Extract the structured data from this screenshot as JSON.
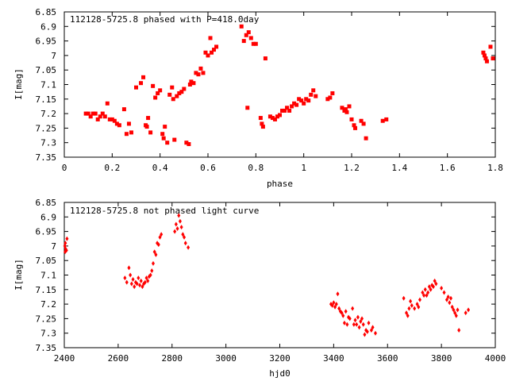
{
  "chart_data": [
    {
      "type": "scatter",
      "title": "112128-5725.8 phased with P=418.0day",
      "xlabel": "phase",
      "ylabel": "I[mag]",
      "xlim": [
        0,
        1.8
      ],
      "ylim": [
        7.35,
        6.85
      ],
      "y_inverted": true,
      "grid": false,
      "xticks": [
        "0",
        "0.2",
        "0.4",
        "0.6",
        "0.8",
        "1",
        "1.2",
        "1.4",
        "1.6",
        "1.8"
      ],
      "yticks": [
        "6.85",
        "6.9",
        "6.95",
        "7",
        "7.05",
        "7.1",
        "7.15",
        "7.2",
        "7.25",
        "7.3",
        "7.35"
      ],
      "marker_color": "#ff0000",
      "points": [
        [
          0.09,
          7.2
        ],
        [
          0.1,
          7.2
        ],
        [
          0.11,
          7.21
        ],
        [
          0.12,
          7.2
        ],
        [
          0.13,
          7.2
        ],
        [
          0.14,
          7.22
        ],
        [
          0.15,
          7.21
        ],
        [
          0.16,
          7.2
        ],
        [
          0.17,
          7.21
        ],
        [
          0.18,
          7.165
        ],
        [
          0.19,
          7.22
        ],
        [
          0.2,
          7.22
        ],
        [
          0.21,
          7.225
        ],
        [
          0.22,
          7.235
        ],
        [
          0.23,
          7.24
        ],
        [
          0.25,
          7.185
        ],
        [
          0.26,
          7.27
        ],
        [
          0.27,
          7.235
        ],
        [
          0.28,
          7.265
        ],
        [
          0.3,
          7.11
        ],
        [
          0.32,
          7.095
        ],
        [
          0.33,
          7.075
        ],
        [
          0.34,
          7.24
        ],
        [
          0.345,
          7.245
        ],
        [
          0.35,
          7.215
        ],
        [
          0.36,
          7.265
        ],
        [
          0.37,
          7.105
        ],
        [
          0.38,
          7.145
        ],
        [
          0.39,
          7.13
        ],
        [
          0.4,
          7.12
        ],
        [
          0.41,
          7.27
        ],
        [
          0.415,
          7.285
        ],
        [
          0.42,
          7.245
        ],
        [
          0.43,
          7.3
        ],
        [
          0.44,
          7.135
        ],
        [
          0.45,
          7.11
        ],
        [
          0.455,
          7.15
        ],
        [
          0.46,
          7.29
        ],
        [
          0.47,
          7.14
        ],
        [
          0.48,
          7.13
        ],
        [
          0.49,
          7.125
        ],
        [
          0.5,
          7.115
        ],
        [
          0.51,
          7.3
        ],
        [
          0.52,
          7.305
        ],
        [
          0.525,
          7.1
        ],
        [
          0.53,
          7.09
        ],
        [
          0.54,
          7.095
        ],
        [
          0.55,
          7.06
        ],
        [
          0.56,
          7.065
        ],
        [
          0.57,
          7.045
        ],
        [
          0.58,
          7.06
        ],
        [
          0.59,
          6.99
        ],
        [
          0.6,
          7.0
        ],
        [
          0.61,
          6.94
        ],
        [
          0.615,
          6.99
        ],
        [
          0.625,
          6.98
        ],
        [
          0.635,
          6.97
        ],
        [
          0.74,
          6.9
        ],
        [
          0.75,
          6.95
        ],
        [
          0.76,
          6.93
        ],
        [
          0.77,
          6.92
        ],
        [
          0.78,
          6.94
        ],
        [
          0.79,
          6.96
        ],
        [
          0.8,
          6.96
        ],
        [
          0.84,
          7.01
        ],
        [
          0.765,
          7.18
        ],
        [
          0.82,
          7.215
        ],
        [
          0.825,
          7.235
        ],
        [
          0.83,
          7.245
        ],
        [
          0.86,
          7.21
        ],
        [
          0.87,
          7.215
        ],
        [
          0.88,
          7.22
        ],
        [
          0.89,
          7.21
        ],
        [
          0.9,
          7.205
        ],
        [
          0.91,
          7.19
        ],
        [
          0.92,
          7.19
        ],
        [
          0.93,
          7.18
        ],
        [
          0.94,
          7.19
        ],
        [
          0.95,
          7.175
        ],
        [
          0.96,
          7.165
        ],
        [
          0.97,
          7.17
        ],
        [
          0.98,
          7.15
        ],
        [
          0.99,
          7.155
        ],
        [
          1.0,
          7.165
        ],
        [
          1.01,
          7.15
        ],
        [
          1.02,
          7.155
        ],
        [
          1.03,
          7.135
        ],
        [
          1.04,
          7.12
        ],
        [
          1.05,
          7.14
        ],
        [
          1.1,
          7.15
        ],
        [
          1.11,
          7.145
        ],
        [
          1.12,
          7.13
        ],
        [
          1.16,
          7.18
        ],
        [
          1.17,
          7.19
        ],
        [
          1.175,
          7.185
        ],
        [
          1.18,
          7.195
        ],
        [
          1.19,
          7.175
        ],
        [
          1.2,
          7.22
        ],
        [
          1.21,
          7.24
        ],
        [
          1.215,
          7.25
        ],
        [
          1.24,
          7.225
        ],
        [
          1.25,
          7.235
        ],
        [
          1.26,
          7.285
        ],
        [
          1.33,
          7.225
        ],
        [
          1.345,
          7.22
        ],
        [
          1.75,
          6.99
        ],
        [
          1.755,
          7.0
        ],
        [
          1.76,
          7.01
        ],
        [
          1.765,
          7.02
        ],
        [
          1.78,
          6.97
        ],
        [
          1.79,
          7.01
        ]
      ]
    },
    {
      "type": "scatter",
      "title": "112128-5725.8 not phased light curve",
      "xlabel": "hjd0",
      "ylabel": "I[mag]",
      "xlim": [
        2400,
        4000
      ],
      "ylim": [
        7.35,
        6.85
      ],
      "y_inverted": true,
      "grid": false,
      "xticks": [
        "2400",
        "2600",
        "2800",
        "3000",
        "3200",
        "3400",
        "3600",
        "3800",
        "4000"
      ],
      "yticks": [
        "6.85",
        "6.9",
        "6.95",
        "7",
        "7.05",
        "7.1",
        "7.15",
        "7.2",
        "7.25",
        "7.3",
        "7.35"
      ],
      "marker_color": "#ff0000",
      "points": [
        [
          2402,
          7.0
        ],
        [
          2403,
          7.02
        ],
        [
          2404,
          6.99
        ],
        [
          2405,
          7.01
        ],
        [
          2408,
          7.015
        ],
        [
          2410,
          6.975
        ],
        [
          2625,
          7.11
        ],
        [
          2632,
          7.125
        ],
        [
          2640,
          7.075
        ],
        [
          2645,
          7.1
        ],
        [
          2650,
          7.13
        ],
        [
          2655,
          7.115
        ],
        [
          2660,
          7.14
        ],
        [
          2665,
          7.125
        ],
        [
          2670,
          7.13
        ],
        [
          2675,
          7.11
        ],
        [
          2680,
          7.135
        ],
        [
          2685,
          7.12
        ],
        [
          2690,
          7.14
        ],
        [
          2695,
          7.13
        ],
        [
          2700,
          7.125
        ],
        [
          2705,
          7.11
        ],
        [
          2710,
          7.12
        ],
        [
          2715,
          7.105
        ],
        [
          2720,
          7.1
        ],
        [
          2725,
          7.085
        ],
        [
          2730,
          7.06
        ],
        [
          2735,
          7.02
        ],
        [
          2740,
          7.03
        ],
        [
          2745,
          6.99
        ],
        [
          2750,
          6.995
        ],
        [
          2755,
          6.97
        ],
        [
          2760,
          6.96
        ],
        [
          2810,
          6.95
        ],
        [
          2815,
          6.925
        ],
        [
          2820,
          6.94
        ],
        [
          2825,
          6.895
        ],
        [
          2830,
          6.915
        ],
        [
          2835,
          6.935
        ],
        [
          2840,
          6.96
        ],
        [
          2845,
          6.97
        ],
        [
          2850,
          6.99
        ],
        [
          2860,
          7.005
        ],
        [
          3390,
          7.2
        ],
        [
          3395,
          7.205
        ],
        [
          3400,
          7.195
        ],
        [
          3405,
          7.21
        ],
        [
          3410,
          7.2
        ],
        [
          3415,
          7.165
        ],
        [
          3420,
          7.215
        ],
        [
          3425,
          7.225
        ],
        [
          3430,
          7.23
        ],
        [
          3435,
          7.24
        ],
        [
          3440,
          7.265
        ],
        [
          3445,
          7.225
        ],
        [
          3450,
          7.27
        ],
        [
          3455,
          7.245
        ],
        [
          3460,
          7.25
        ],
        [
          3470,
          7.215
        ],
        [
          3475,
          7.27
        ],
        [
          3480,
          7.255
        ],
        [
          3485,
          7.27
        ],
        [
          3490,
          7.245
        ],
        [
          3495,
          7.28
        ],
        [
          3500,
          7.26
        ],
        [
          3505,
          7.25
        ],
        [
          3510,
          7.27
        ],
        [
          3515,
          7.305
        ],
        [
          3520,
          7.29
        ],
        [
          3525,
          7.295
        ],
        [
          3530,
          7.265
        ],
        [
          3540,
          7.29
        ],
        [
          3545,
          7.28
        ],
        [
          3555,
          7.3
        ],
        [
          3660,
          7.18
        ],
        [
          3670,
          7.23
        ],
        [
          3675,
          7.24
        ],
        [
          3680,
          7.215
        ],
        [
          3685,
          7.19
        ],
        [
          3690,
          7.205
        ],
        [
          3700,
          7.215
        ],
        [
          3710,
          7.2
        ],
        [
          3715,
          7.21
        ],
        [
          3720,
          7.185
        ],
        [
          3730,
          7.16
        ],
        [
          3735,
          7.17
        ],
        [
          3740,
          7.15
        ],
        [
          3745,
          7.17
        ],
        [
          3750,
          7.16
        ],
        [
          3755,
          7.14
        ],
        [
          3760,
          7.15
        ],
        [
          3765,
          7.135
        ],
        [
          3770,
          7.14
        ],
        [
          3775,
          7.12
        ],
        [
          3780,
          7.13
        ],
        [
          3800,
          7.145
        ],
        [
          3810,
          7.16
        ],
        [
          3820,
          7.185
        ],
        [
          3825,
          7.175
        ],
        [
          3830,
          7.195
        ],
        [
          3835,
          7.18
        ],
        [
          3840,
          7.21
        ],
        [
          3845,
          7.22
        ],
        [
          3850,
          7.23
        ],
        [
          3855,
          7.24
        ],
        [
          3860,
          7.22
        ],
        [
          3865,
          7.29
        ],
        [
          3890,
          7.23
        ],
        [
          3900,
          7.22
        ]
      ]
    }
  ]
}
